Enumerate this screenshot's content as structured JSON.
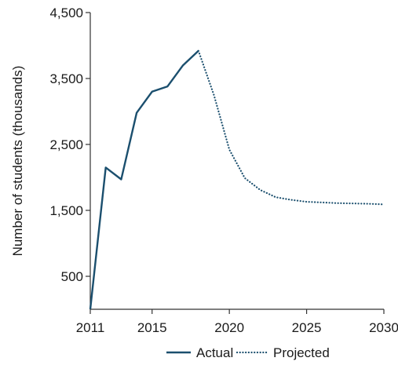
{
  "chart_data": {
    "type": "line",
    "ylabel": "Number of students (thousands)",
    "xlim": [
      2011,
      2030
    ],
    "ylim": [
      0,
      4500
    ],
    "x_ticks": [
      "2011",
      "2015",
      "2020",
      "2025",
      "2030"
    ],
    "y_ticks": [
      "500",
      "1,500",
      "2,500",
      "3,500",
      "4,500"
    ],
    "grid": false,
    "legend": "bottom",
    "series": [
      {
        "name": "Actual",
        "style": "solid",
        "color": "#1b4f6e",
        "x": [
          2011,
          2012,
          2013,
          2014,
          2015,
          2016,
          2017,
          2018
        ],
        "y": [
          0,
          2150,
          1970,
          2980,
          3300,
          3380,
          3700,
          3920
        ]
      },
      {
        "name": "Projected",
        "style": "dotted",
        "color": "#1b4f6e",
        "x": [
          2018,
          2019,
          2020,
          2021,
          2022,
          2023,
          2024,
          2025,
          2026,
          2027,
          2028,
          2029,
          2030
        ],
        "y": [
          3920,
          3250,
          2420,
          1990,
          1810,
          1700,
          1660,
          1630,
          1620,
          1610,
          1605,
          1600,
          1590
        ]
      }
    ]
  }
}
